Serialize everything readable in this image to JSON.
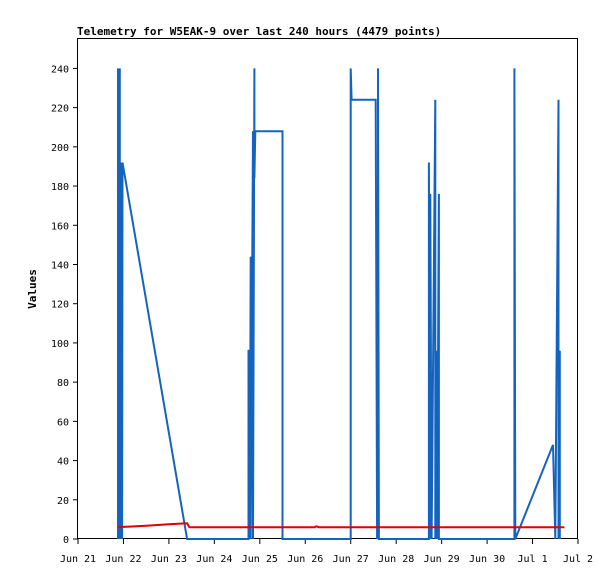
{
  "chart_data": {
    "type": "line",
    "title": "Telemetry for W5EAK-9 over last 240 hours (4479 points)",
    "xlabel": "",
    "ylabel": "Values",
    "xlim": [
      0,
      11
    ],
    "ylim": [
      0,
      255
    ],
    "grid": false,
    "legend": "none",
    "x_tick_labels": [
      "Jun 21",
      "Jun 22",
      "Jun 23",
      "Jun 24",
      "Jun 25",
      "Jun 26",
      "Jun 27",
      "Jun 28",
      "Jun 29",
      "Jun 30",
      "Jul 1",
      "Jul 2"
    ],
    "y_ticks": [
      0,
      20,
      40,
      60,
      80,
      100,
      120,
      140,
      160,
      180,
      200,
      220,
      240
    ],
    "series": [
      {
        "color": "#1464be",
        "x": [
          0.88,
          0.88,
          0.88,
          0.9,
          0.9,
          0.92,
          0.92,
          0.94,
          0.94,
          0.96,
          0.96,
          0.97,
          0.97,
          0.98,
          0.98,
          2.4,
          2.4,
          3.75,
          3.75,
          3.78,
          3.78,
          3.8,
          3.8,
          3.85,
          3.85,
          3.88,
          3.88,
          3.9,
          3.9,
          4.0,
          4.0,
          4.5,
          4.5,
          6.0,
          6.0,
          6.02,
          6.02,
          6.55,
          6.55,
          6.58,
          6.58,
          6.6,
          6.6,
          6.62,
          6.62,
          7.72,
          7.72,
          7.75,
          7.75,
          7.78,
          7.78,
          7.86,
          7.86,
          7.9,
          7.9,
          7.94,
          7.94,
          7.96,
          7.96,
          9.6,
          9.6,
          9.62,
          9.62,
          10.45,
          10.45,
          10.5,
          10.5,
          10.57,
          10.57,
          10.6,
          10.6
        ],
        "values": [
          0,
          240,
          32,
          32,
          0,
          240,
          0,
          176,
          0,
          192,
          0,
          176,
          0,
          192,
          192,
          0,
          0,
          0,
          96,
          96,
          0,
          144,
          0,
          208,
          0,
          240,
          184,
          208,
          208,
          208,
          208,
          208,
          0,
          0,
          240,
          224,
          224,
          224,
          224,
          0,
          160,
          0,
          240,
          0,
          0,
          0,
          192,
          0,
          176,
          0,
          0,
          224,
          0,
          96,
          0,
          176,
          0,
          0,
          0,
          0,
          240,
          0,
          0,
          48,
          48,
          0,
          0,
          224,
          0,
          96,
          0
        ]
      },
      {
        "color": "#e00000",
        "x": [
          0.88,
          1.5,
          2.0,
          2.4,
          2.45,
          5.2,
          5.25,
          5.3,
          6.0,
          9.6,
          10.7
        ],
        "values": [
          6,
          6.8,
          7.5,
          8,
          6,
          6,
          6.5,
          6,
          6,
          6,
          6
        ]
      }
    ]
  }
}
